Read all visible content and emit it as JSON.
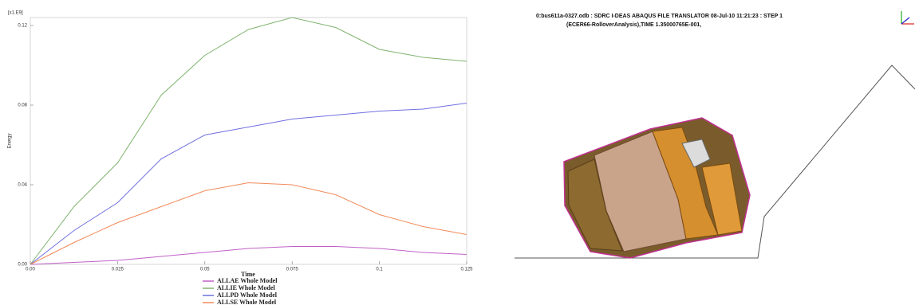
{
  "chart_data": {
    "type": "line",
    "y_unit": "[x1.E9]",
    "x_label": "Time",
    "y_label": "Energy",
    "x": [
      0,
      0.0125,
      0.025,
      0.0375,
      0.05,
      0.0625,
      0.075,
      0.0875,
      0.1,
      0.1125,
      0.125
    ],
    "series": [
      {
        "name": "ALLAE Whole Model",
        "color": "#c060c8",
        "values": [
          0,
          0.001,
          0.002,
          0.004,
          0.006,
          0.008,
          0.009,
          0.009,
          0.008,
          0.006,
          0.005
        ]
      },
      {
        "name": "ALLIE Whole Model",
        "color": "#7fb46e",
        "values": [
          0,
          0.029,
          0.051,
          0.085,
          0.105,
          0.118,
          0.124,
          0.119,
          0.108,
          0.104,
          0.102
        ]
      },
      {
        "name": "ALLPD Whole Model",
        "color": "#6f6fe0",
        "values": [
          0,
          0.017,
          0.031,
          0.053,
          0.065,
          0.069,
          0.073,
          0.075,
          0.077,
          0.078,
          0.081
        ]
      },
      {
        "name": "ALLSE Whole Model",
        "color": "#f08a5a",
        "values": [
          0,
          0.011,
          0.021,
          0.029,
          0.037,
          0.041,
          0.04,
          0.035,
          0.025,
          0.019,
          0.015
        ]
      }
    ],
    "xlim": [
      0,
      0.125
    ],
    "ylim": [
      0,
      0.124
    ],
    "xticks": [
      {
        "value": 0,
        "label": "0.00"
      },
      0.025,
      0.05,
      0.075,
      0.1,
      0.125
    ],
    "yticks": [
      {
        "value": 0,
        "label": "0.00"
      },
      0.04,
      0.08,
      0.12
    ],
    "grid": false
  },
  "viewport": {
    "header": [
      "0:bus611a-0327.odb : SDRC I-DEAS ABAQUS FILE TRANSLATOR 08-Jul-10 11:21:23 : STEP 1",
      "(ECER66-RolloverAnalysis),TIME 1.35000765E-001,"
    ]
  }
}
